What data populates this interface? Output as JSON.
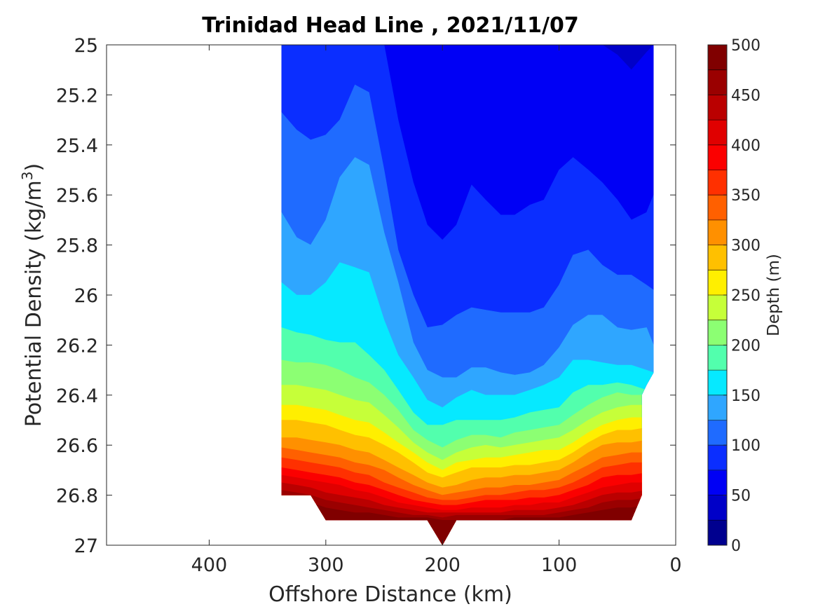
{
  "chart_data": {
    "type": "heatmap",
    "subtype": "filled-contour",
    "title": "Trinidad Head Line , 2021/11/07",
    "xlabel": "Offshore Distance (km)",
    "ylabel_main": "Potential Density (kg/m",
    "ylabel_sup": "3",
    "ylabel_close": ")",
    "colorbar_label": "Depth (m)",
    "xlim": [
      488,
      0
    ],
    "x_reversed": true,
    "ylim": [
      25,
      27
    ],
    "y_reversed": true,
    "clim": [
      0,
      500
    ],
    "contour_step": 25,
    "xticks": [
      400,
      300,
      200,
      100,
      0
    ],
    "xtick_labels": [
      "400",
      "300",
      "200",
      "100",
      "0"
    ],
    "yticks": [
      25,
      25.2,
      25.4,
      25.6,
      25.8,
      26,
      26.2,
      26.4,
      26.6,
      26.8,
      27
    ],
    "ytick_labels": [
      "25",
      "25.2",
      "25.4",
      "25.6",
      "25.8",
      "26",
      "26.2",
      "26.4",
      "26.6",
      "26.8",
      "27"
    ],
    "cticks": [
      0,
      50,
      100,
      150,
      200,
      250,
      300,
      350,
      400,
      450,
      500
    ],
    "ctick_labels": [
      "0",
      "50",
      "100",
      "150",
      "200",
      "250",
      "300",
      "350",
      "400",
      "450",
      "500"
    ],
    "colormap": "jet",
    "colormap_bins": [
      "#00008f",
      "#0000c8",
      "#0000f5",
      "#0b2eff",
      "#1f6bff",
      "#2fa6ff",
      "#06e9ff",
      "#52ffad",
      "#8cff73",
      "#c6ff39",
      "#ffef00",
      "#ffc000",
      "#ff9000",
      "#ff6000",
      "#ff3000",
      "#fb0000",
      "#e00000",
      "#ba0000",
      "#9a0000",
      "#800000"
    ],
    "station_x": [
      338,
      325,
      313,
      300,
      288,
      275,
      263,
      250,
      238,
      225,
      213,
      200,
      188,
      175,
      163,
      150,
      138,
      125,
      113,
      100,
      88,
      75,
      63,
      50,
      38,
      25,
      19
    ],
    "contours": [
      {
        "level": 50,
        "sigma": [
          25.0,
          25.0,
          25.0,
          25.0,
          25.0,
          25.0,
          25.0,
          25.0,
          25.0,
          25.0,
          25.0,
          25.0,
          25.0,
          25.0,
          25.0,
          25.0,
          25.0,
          25.0,
          25.0,
          25.0,
          25.0,
          25.0,
          25.0,
          25.04,
          25.1,
          25.03,
          25.0
        ]
      },
      {
        "level": 75,
        "sigma": [
          25.0,
          25.0,
          25.0,
          25.0,
          25.0,
          25.0,
          25.0,
          25.0,
          25.3,
          25.55,
          25.72,
          25.78,
          25.72,
          25.56,
          25.62,
          25.68,
          25.68,
          25.64,
          25.62,
          25.5,
          25.45,
          25.5,
          25.55,
          25.62,
          25.7,
          25.67,
          25.6
        ]
      },
      {
        "level": 100,
        "sigma": [
          25.27,
          25.34,
          25.38,
          25.36,
          25.3,
          25.16,
          25.19,
          25.5,
          25.82,
          26.0,
          26.13,
          26.12,
          26.08,
          26.05,
          26.06,
          26.07,
          26.07,
          26.07,
          26.05,
          25.96,
          25.84,
          25.82,
          25.88,
          25.92,
          25.92,
          25.96,
          25.98
        ]
      },
      {
        "level": 125,
        "sigma": [
          25.67,
          25.77,
          25.8,
          25.7,
          25.53,
          25.45,
          25.48,
          25.75,
          25.95,
          26.19,
          26.3,
          26.33,
          26.33,
          26.29,
          26.29,
          26.31,
          26.32,
          26.31,
          26.28,
          26.21,
          26.12,
          26.08,
          26.08,
          26.13,
          26.14,
          26.13,
          26.2
        ]
      },
      {
        "level": 150,
        "sigma": [
          25.95,
          26.0,
          26.0,
          25.95,
          25.87,
          25.89,
          25.91,
          26.1,
          26.24,
          26.33,
          26.42,
          26.45,
          26.41,
          26.38,
          26.4,
          26.4,
          26.4,
          26.38,
          26.36,
          26.33,
          26.26,
          26.26,
          26.27,
          26.28,
          26.28,
          26.3,
          26.31
        ]
      },
      {
        "level": 175,
        "sigma": [
          26.13,
          26.15,
          26.16,
          26.18,
          26.19,
          26.19,
          26.24,
          26.3,
          26.38,
          26.47,
          26.52,
          26.52,
          26.5,
          26.5,
          26.5,
          26.5,
          26.49,
          26.47,
          26.46,
          26.45,
          26.39,
          26.36,
          26.36,
          26.35,
          26.36,
          26.38,
          26.38
        ]
      },
      {
        "level": 200,
        "sigma": [
          26.26,
          26.27,
          26.27,
          26.28,
          26.3,
          26.33,
          26.35,
          26.4,
          26.46,
          26.54,
          26.58,
          26.61,
          26.58,
          26.56,
          26.56,
          26.57,
          26.55,
          26.54,
          26.53,
          26.52,
          26.48,
          26.44,
          26.41,
          26.39,
          26.4,
          26.4,
          26.4
        ]
      },
      {
        "level": 225,
        "sigma": [
          26.36,
          26.36,
          26.37,
          26.38,
          26.4,
          26.42,
          26.43,
          26.48,
          26.53,
          26.59,
          26.63,
          26.66,
          26.63,
          26.61,
          26.6,
          26.61,
          26.6,
          26.59,
          26.58,
          26.57,
          26.54,
          26.5,
          26.47,
          26.45,
          26.44,
          26.44,
          26.44
        ]
      },
      {
        "level": 250,
        "sigma": [
          26.44,
          26.44,
          26.45,
          26.46,
          26.48,
          26.5,
          26.51,
          26.55,
          26.59,
          26.63,
          26.67,
          26.7,
          26.67,
          26.66,
          26.65,
          26.65,
          26.64,
          26.63,
          26.62,
          26.62,
          26.59,
          26.55,
          26.52,
          26.5,
          26.49,
          26.49,
          26.49
        ]
      },
      {
        "level": 275,
        "sigma": [
          26.5,
          26.5,
          26.51,
          26.52,
          26.54,
          26.56,
          26.57,
          26.6,
          26.63,
          26.67,
          26.71,
          26.73,
          26.71,
          26.69,
          26.69,
          26.69,
          26.68,
          26.68,
          26.67,
          26.66,
          26.63,
          26.59,
          26.56,
          26.54,
          26.54,
          26.53,
          26.53
        ]
      },
      {
        "level": 300,
        "sigma": [
          26.57,
          26.57,
          26.58,
          26.59,
          26.6,
          26.62,
          26.63,
          26.66,
          26.69,
          26.72,
          26.75,
          26.77,
          26.76,
          26.74,
          26.73,
          26.73,
          26.72,
          26.72,
          26.71,
          26.7,
          26.67,
          26.63,
          26.6,
          26.59,
          26.59,
          26.58,
          26.58
        ]
      },
      {
        "level": 325,
        "sigma": [
          26.61,
          26.62,
          26.63,
          26.64,
          26.65,
          26.67,
          26.68,
          26.7,
          26.73,
          26.76,
          26.78,
          26.8,
          26.79,
          26.78,
          26.77,
          26.77,
          26.76,
          26.76,
          26.75,
          26.74,
          26.71,
          26.68,
          26.65,
          26.64,
          26.63,
          26.63,
          26.63
        ]
      },
      {
        "level": 350,
        "sigma": [
          26.65,
          26.66,
          26.67,
          26.68,
          26.69,
          26.71,
          26.72,
          26.75,
          26.77,
          26.79,
          26.81,
          26.82,
          26.82,
          26.81,
          26.8,
          26.8,
          26.79,
          26.78,
          26.78,
          26.77,
          26.75,
          26.72,
          26.69,
          26.68,
          26.67,
          26.67,
          26.67
        ]
      },
      {
        "level": 375,
        "sigma": [
          26.69,
          26.7,
          26.71,
          26.72,
          26.73,
          26.75,
          26.76,
          26.78,
          26.8,
          26.82,
          26.83,
          26.84,
          26.84,
          26.83,
          26.82,
          26.82,
          26.82,
          26.81,
          26.81,
          26.8,
          26.78,
          26.76,
          26.73,
          26.72,
          26.72,
          26.71,
          26.71
        ]
      },
      {
        "level": 400,
        "sigma": [
          26.72,
          26.73,
          26.74,
          26.75,
          26.76,
          26.78,
          26.79,
          26.81,
          26.83,
          26.84,
          26.85,
          26.86,
          26.86,
          26.85,
          26.85,
          26.85,
          26.84,
          26.84,
          26.83,
          26.83,
          26.81,
          26.79,
          26.77,
          26.76,
          26.75,
          26.75,
          26.75
        ]
      },
      {
        "level": 425,
        "sigma": [
          26.75,
          26.76,
          26.77,
          26.79,
          26.8,
          26.81,
          26.82,
          26.84,
          26.85,
          26.86,
          26.87,
          26.87,
          26.87,
          26.87,
          26.87,
          26.87,
          26.86,
          26.86,
          26.86,
          26.85,
          26.84,
          26.82,
          26.8,
          26.79,
          26.79,
          26.78,
          26.78
        ]
      },
      {
        "level": 450,
        "sigma": [
          26.78,
          26.79,
          26.8,
          26.82,
          26.83,
          26.84,
          26.85,
          26.86,
          26.87,
          26.88,
          26.88,
          26.89,
          26.88,
          26.88,
          26.88,
          26.88,
          26.88,
          26.88,
          26.88,
          26.87,
          26.86,
          26.85,
          26.83,
          26.82,
          26.82,
          26.81,
          26.81
        ]
      },
      {
        "level": 475,
        "sigma": [
          26.8,
          26.81,
          26.83,
          26.85,
          26.86,
          26.87,
          26.87,
          26.88,
          26.89,
          26.89,
          26.89,
          26.9,
          26.9,
          26.9,
          26.9,
          26.9,
          26.89,
          26.89,
          26.89,
          26.89,
          26.88,
          26.87,
          26.86,
          26.85,
          26.85,
          26.84,
          26.84
        ]
      }
    ],
    "data_boundary": [
      [
        338,
        25.0
      ],
      [
        19,
        25.0
      ],
      [
        19,
        26.31
      ],
      [
        25,
        26.36
      ],
      [
        29,
        26.4
      ],
      [
        29,
        26.8
      ],
      [
        38,
        26.9
      ],
      [
        188,
        26.9
      ],
      [
        200,
        27.0
      ],
      [
        213,
        26.9
      ],
      [
        300,
        26.9
      ],
      [
        313,
        26.8
      ],
      [
        338,
        26.8
      ]
    ]
  }
}
